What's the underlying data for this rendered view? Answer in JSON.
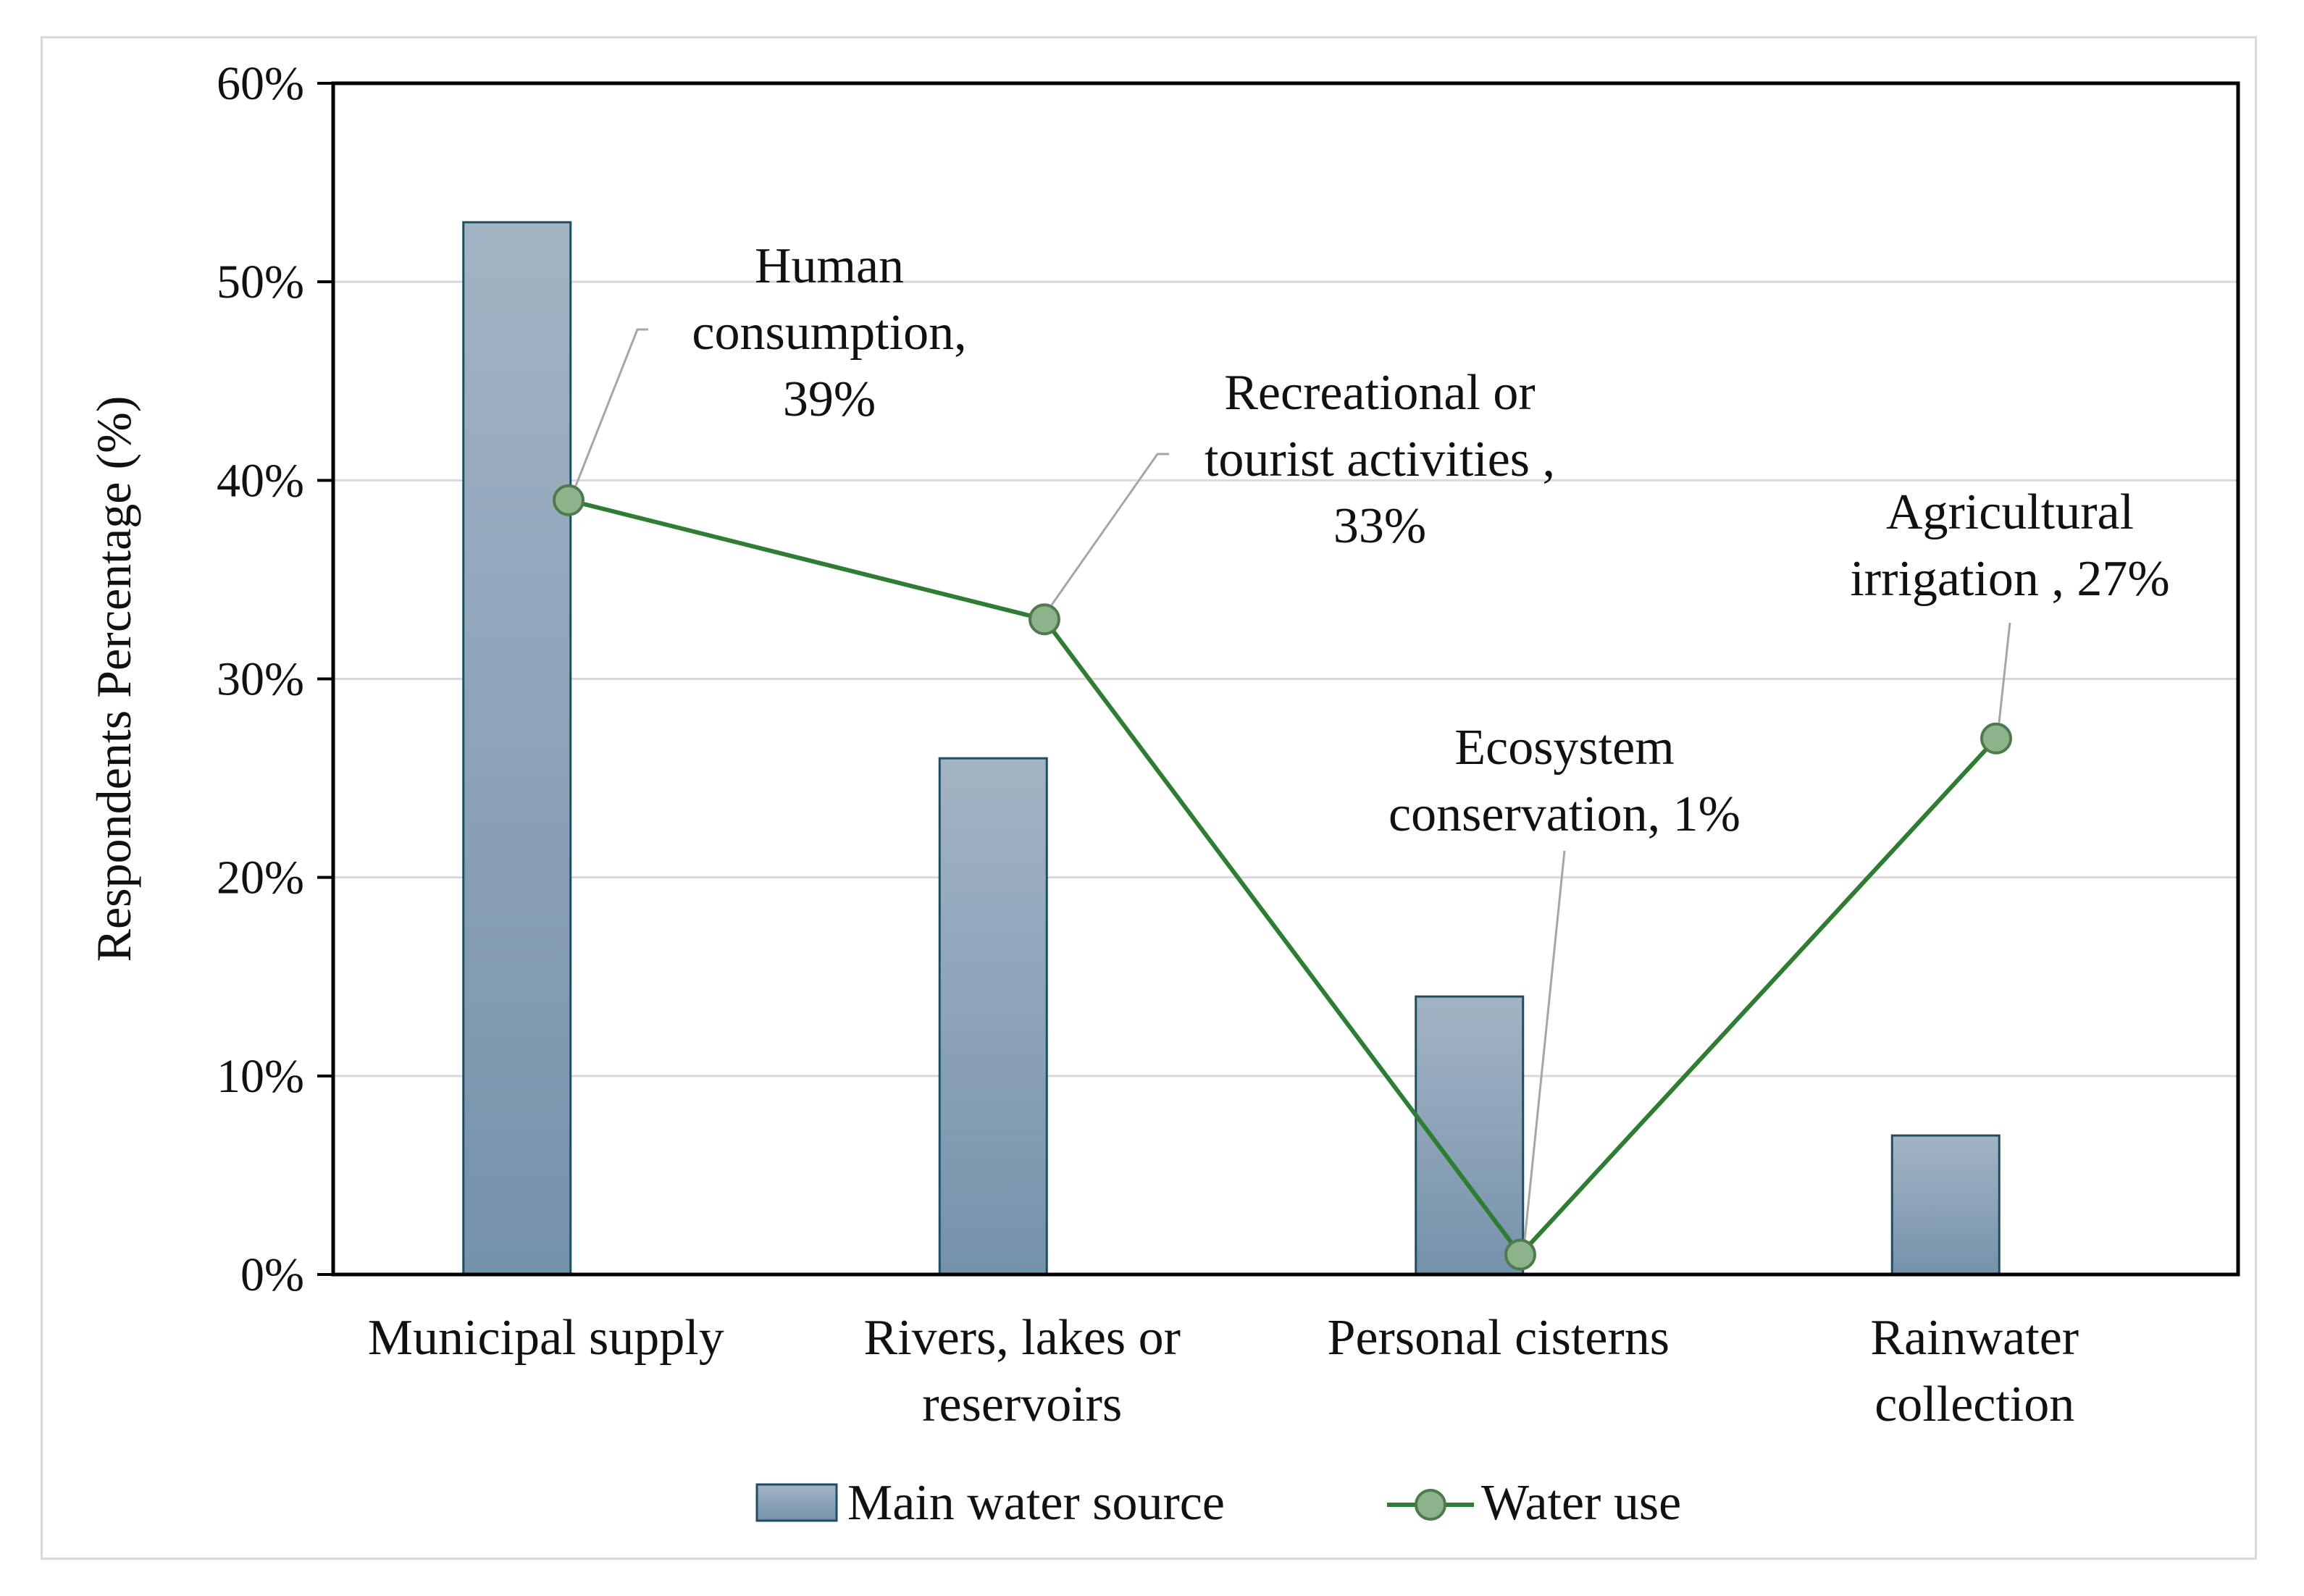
{
  "chart_data": {
    "type": "bar+line",
    "ylabel": "Respondents Percentage (%)",
    "xlabel": "",
    "ylim": [
      0,
      60
    ],
    "y_ticks": [
      "0%",
      "10%",
      "20%",
      "30%",
      "40%",
      "50%",
      "60%"
    ],
    "y_tick_values": [
      0,
      10,
      20,
      30,
      40,
      50,
      60
    ],
    "grid": true,
    "legend_position": "bottom",
    "categories": [
      [
        "Municipal supply"
      ],
      [
        "Rivers, lakes or",
        "reservoirs"
      ],
      [
        "Personal cisterns"
      ],
      [
        "Rainwater",
        "collection"
      ]
    ],
    "series": [
      {
        "name": "Main water source",
        "kind": "bar",
        "values": [
          53,
          26,
          14,
          7
        ],
        "color": "#8aa3b8",
        "edge": "#1f4e63"
      },
      {
        "name": "Water use",
        "kind": "line",
        "values": [
          39,
          33,
          1,
          27
        ],
        "color": "#2e7d32",
        "marker_fill": "#8db38a",
        "point_labels": [
          [
            "Human",
            "consumption,",
            "39%"
          ],
          [
            "Recreational or",
            "tourist activities ,",
            "33%"
          ],
          [
            "Ecosystem",
            "conservation, 1%"
          ],
          [
            "Agricultural",
            "irrigation , 27%"
          ]
        ]
      }
    ]
  }
}
